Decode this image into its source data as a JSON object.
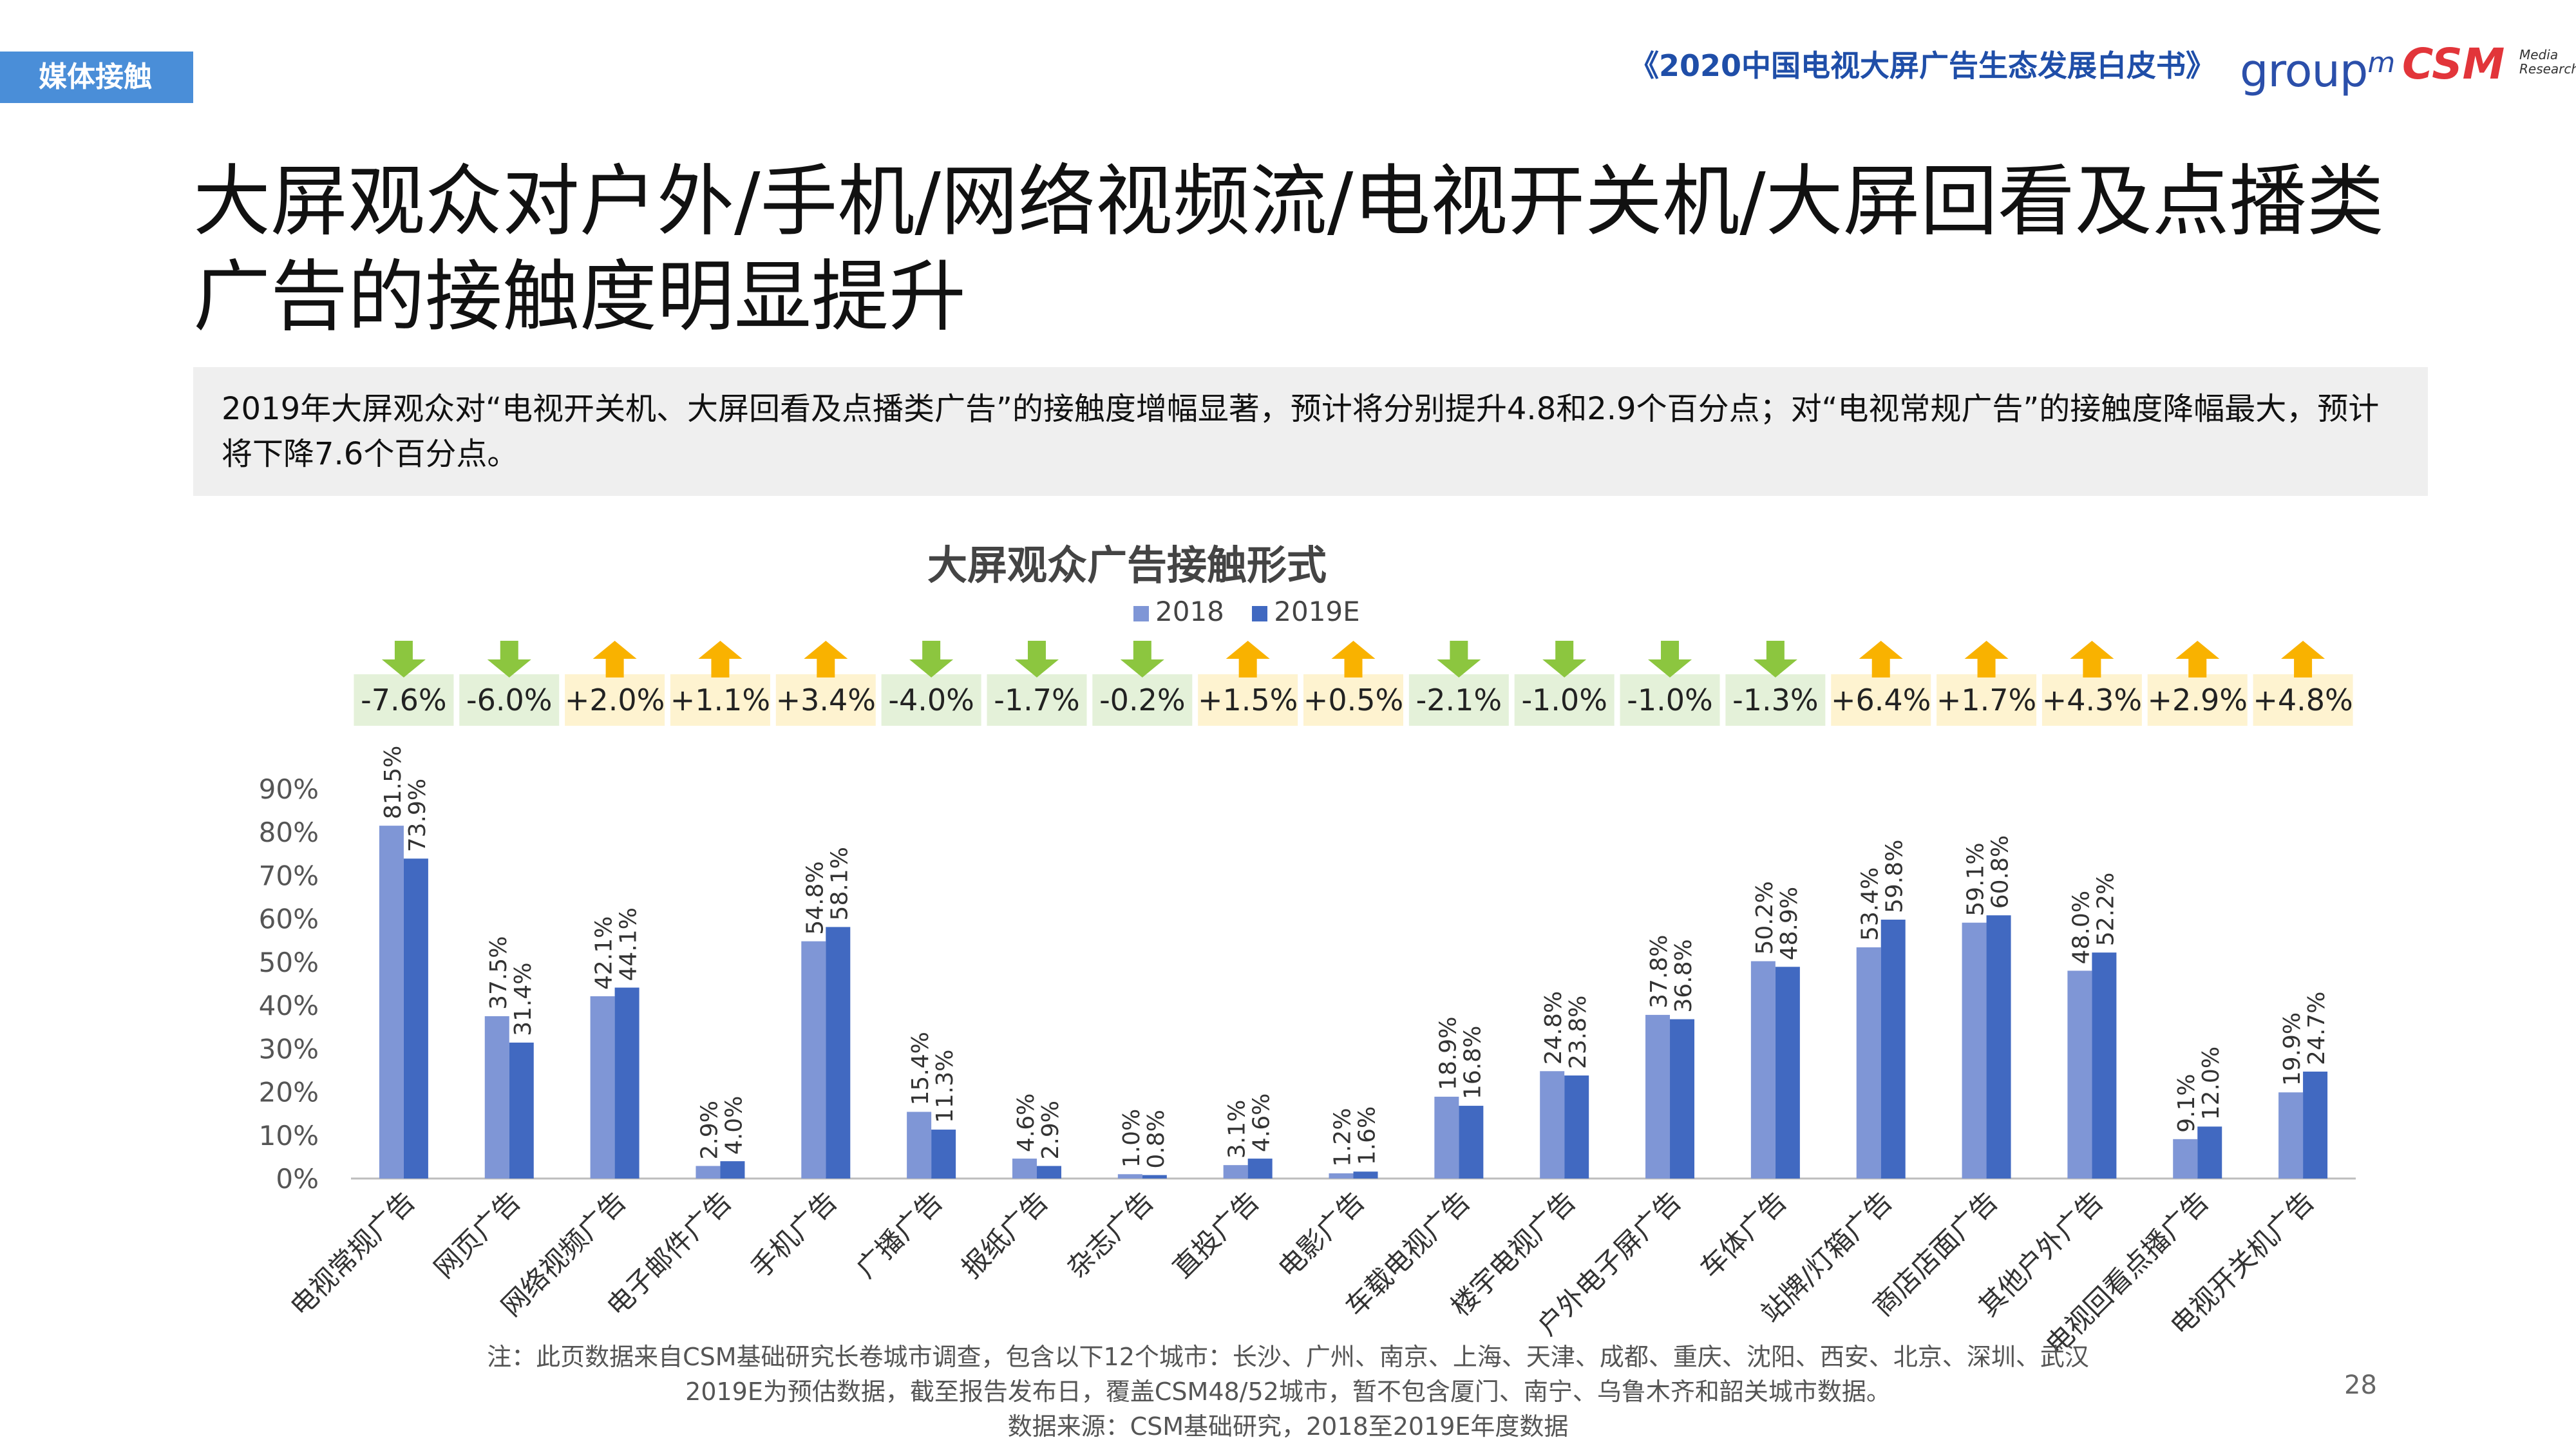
{
  "header": {
    "section_tag": "媒体接触",
    "report_title": "《2020中国电视大屏广告生态发展白皮书》",
    "logo_groupm_text": "group",
    "logo_groupm_sup": "m",
    "logo_csm_text": "CSM",
    "logo_csm_sub": "Media Research"
  },
  "headline": "大屏观众对户外/手机/网络视频流/电视开关机/大屏回看及点播类广告的接触度明显提升",
  "summary": "2019年大屏观众对“电视开关机、大屏回看及点播类广告”的接触度增幅显著，预计将分别提升4.8和2.9个百分点；对“电视常规广告”的接触度降幅最大，预计将下降7.6个百分点。",
  "chart_data": {
    "type": "bar",
    "title": "大屏观众广告接触形式",
    "categories": [
      "电视常规广告",
      "网页广告",
      "网络视频广告",
      "电子邮件广告",
      "手机广告",
      "广播广告",
      "报纸广告",
      "杂志广告",
      "直投广告",
      "电影广告",
      "车载电视广告",
      "楼宇电视广告",
      "户外电子屏广告",
      "车体广告",
      "站牌/灯箱广告",
      "商店店面广告",
      "其他户外广告",
      "电视回看点播广告",
      "电视开关机广告"
    ],
    "series": [
      {
        "name": "2018",
        "values": [
          81.5,
          37.5,
          42.1,
          2.9,
          54.8,
          15.4,
          4.6,
          1.0,
          3.1,
          1.2,
          18.9,
          24.8,
          37.8,
          50.2,
          53.4,
          59.1,
          48.0,
          9.1,
          19.9
        ],
        "labels": [
          "81.5%",
          "37.5%",
          "42.1%",
          "2.9%",
          "54.8%",
          "15.4%",
          "4.6%",
          "1.0%",
          "3.1%",
          "1.2%",
          "18.9%",
          "24.8%",
          "37.8%",
          "50.2%",
          "53.4%",
          "59.1%",
          "48.0%",
          "9.1%",
          "19.9%"
        ],
        "color": "#7f96d6"
      },
      {
        "name": "2019E",
        "values": [
          73.9,
          31.4,
          44.1,
          4.0,
          58.1,
          11.3,
          2.9,
          0.8,
          4.6,
          1.6,
          16.8,
          23.8,
          36.8,
          48.9,
          59.8,
          60.8,
          52.2,
          12.0,
          24.7
        ],
        "labels": [
          "73.9%",
          "31.4%",
          "44.1%",
          "4.0%",
          "58.1%",
          "11.3%",
          "2.9%",
          "0.8%",
          "4.6%",
          "1.6%",
          "16.8%",
          "23.8%",
          "36.8%",
          "48.9%",
          "59.8%",
          "60.8%",
          "52.2%",
          "12.0%",
          "24.7%"
        ],
        "color": "#4169c1"
      }
    ],
    "changes": [
      "-7.6%",
      "-6.0%",
      "+2.0%",
      "+1.1%",
      "+3.4%",
      "-4.0%",
      "-1.7%",
      "-0.2%",
      "+1.5%",
      "+0.5%",
      "-2.1%",
      "-1.0%",
      "-1.0%",
      "-1.3%",
      "+6.4%",
      "+1.7%",
      "+4.3%",
      "+2.9%",
      "+4.8%"
    ],
    "change_directions": [
      "down",
      "down",
      "up",
      "up",
      "up",
      "down",
      "down",
      "down",
      "up",
      "up",
      "down",
      "down",
      "down",
      "down",
      "up",
      "up",
      "up",
      "up",
      "up"
    ],
    "change_colors": {
      "down_arrow": "#8cc63f",
      "down_bg": "#e4f1d9",
      "up_arrow": "#f9b200",
      "up_bg": "#fef3d0"
    },
    "y_ticks": [
      "0%",
      "10%",
      "20%",
      "30%",
      "40%",
      "50%",
      "60%",
      "70%",
      "80%",
      "90%"
    ],
    "ylim": [
      0,
      90
    ],
    "grid": false,
    "legend_position": "top-center"
  },
  "footnote": {
    "line1": "注：此页数据来自CSM基础研究长卷城市调查，包含以下12个城市：长沙、广州、南京、上海、天津、成都、重庆、沈阳、西安、北京、深圳、武汉",
    "line2": "2019E为预估数据，截至报告发布日，覆盖CSM48/52城市，暂不包含厦门、南宁、乌鲁木齐和韶关城市数据。",
    "line3": "数据来源：CSM基础研究，2018至2019E年度数据"
  },
  "page_number": "28"
}
